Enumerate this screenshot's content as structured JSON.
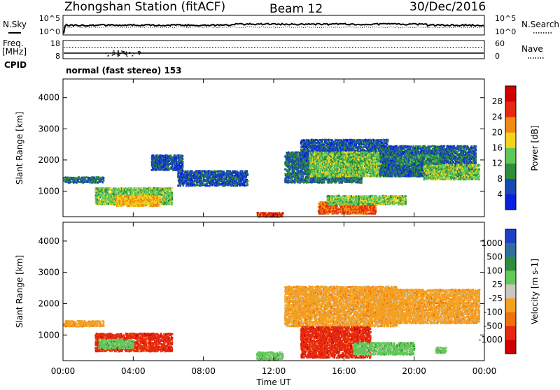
{
  "header": {
    "station": "Zhongshan Station (fitACF)",
    "beam": "Beam 12",
    "date": "30/Dec/2016"
  },
  "noise_panel": {
    "left_label": "N.Sky",
    "right_label": "N.Search",
    "left_ticks": [
      "10^5",
      "10^0"
    ],
    "right_ticks": [
      "10^5",
      "10^0"
    ]
  },
  "freq_panel": {
    "left_label_1": "Freq.",
    "left_label_2": "[MHz]",
    "right_label": "Nave",
    "left_ticks": [
      "18",
      "8"
    ],
    "right_ticks": [
      "60",
      "0"
    ]
  },
  "cpid": {
    "label": "CPID",
    "text": "normal (fast stereo) 153"
  },
  "chart_data": [
    {
      "type": "heatmap",
      "name": "power",
      "ylabel": "Slant Range [km]",
      "ylim": [
        180,
        4600
      ],
      "yticks": [
        1000,
        2000,
        3000,
        4000
      ],
      "colorbar": {
        "label": "Power [dB]",
        "ticks": [
          4,
          8,
          12,
          16,
          20,
          24,
          28
        ],
        "range": [
          0,
          32
        ],
        "colors": [
          "#0a1fe0",
          "#1848b0",
          "#2e8c3a",
          "#5fc85a",
          "#f4d21e",
          "#f08a10",
          "#e52810",
          "#d00000"
        ]
      },
      "regions": [
        {
          "t0": 0.0,
          "t1": 2.3,
          "r0": 1300,
          "r1": 1500,
          "level": 8
        },
        {
          "t0": 1.8,
          "t1": 6.2,
          "r0": 600,
          "r1": 1150,
          "level": 14
        },
        {
          "t0": 3.0,
          "t1": 5.5,
          "r0": 550,
          "r1": 900,
          "level": 20
        },
        {
          "t0": 5.0,
          "t1": 6.8,
          "r0": 1700,
          "r1": 2200,
          "level": 6
        },
        {
          "t0": 6.5,
          "t1": 10.5,
          "r0": 1200,
          "r1": 1700,
          "level": 6
        },
        {
          "t0": 11.0,
          "t1": 12.5,
          "r0": 200,
          "r1": 350,
          "level": 26
        },
        {
          "t0": 12.6,
          "t1": 17.0,
          "r0": 1300,
          "r1": 2300,
          "level": 8
        },
        {
          "t0": 13.5,
          "t1": 18.5,
          "r0": 2000,
          "r1": 2700,
          "level": 6
        },
        {
          "t0": 14.0,
          "t1": 20.5,
          "r0": 1500,
          "r1": 2300,
          "level": 14
        },
        {
          "t0": 14.5,
          "t1": 17.8,
          "r0": 300,
          "r1": 700,
          "level": 24
        },
        {
          "t0": 15.0,
          "t1": 19.5,
          "r0": 600,
          "r1": 900,
          "level": 14
        },
        {
          "t0": 18.0,
          "t1": 23.5,
          "r0": 1500,
          "r1": 2500,
          "level": 7
        },
        {
          "t0": 20.5,
          "t1": 23.7,
          "r0": 1400,
          "r1": 1900,
          "level": 14
        },
        {
          "t0": 19.0,
          "t1": 21.5,
          "r0": 1900,
          "r1": 2200,
          "level": 10
        }
      ]
    },
    {
      "type": "heatmap",
      "name": "velocity",
      "ylabel": "Slant Range [km]",
      "ylim": [
        180,
        4600
      ],
      "yticks": [
        1000,
        2000,
        3000,
        4000
      ],
      "colorbar": {
        "label": "Velocity [m s-1]",
        "ticks": [
          "1000",
          "500",
          "100",
          "25",
          "-25",
          "-100",
          "-500",
          "-1000"
        ],
        "colors": [
          "#1e3fc8",
          "#2f6e9e",
          "#2e8c3a",
          "#62c858",
          "#c8c8c0",
          "#f4a020",
          "#f07010",
          "#e52810",
          "#d00000"
        ]
      },
      "regions": [
        {
          "t0": 0.0,
          "t1": 2.3,
          "r0": 1300,
          "r1": 1500,
          "level": "-25"
        },
        {
          "t0": 1.8,
          "t1": 6.2,
          "r0": 500,
          "r1": 1100,
          "level": "-500"
        },
        {
          "t0": 2.0,
          "t1": 4.0,
          "r0": 600,
          "r1": 900,
          "level": "100"
        },
        {
          "t0": 11.0,
          "t1": 12.5,
          "r0": 250,
          "r1": 500,
          "level": "100"
        },
        {
          "t0": 12.6,
          "t1": 19.0,
          "r0": 1300,
          "r1": 2600,
          "level": "-25"
        },
        {
          "t0": 13.5,
          "t1": 17.5,
          "r0": 300,
          "r1": 1300,
          "level": "-500"
        },
        {
          "t0": 16.5,
          "t1": 20.0,
          "r0": 400,
          "r1": 800,
          "level": "100"
        },
        {
          "t0": 18.0,
          "t1": 23.7,
          "r0": 1400,
          "r1": 2500,
          "level": "-25"
        },
        {
          "t0": 21.2,
          "t1": 21.8,
          "r0": 450,
          "r1": 650,
          "level": "100"
        }
      ]
    }
  ],
  "time_axis": {
    "label": "Time UT",
    "ticks": [
      "00:00",
      "04:00",
      "08:00",
      "12:00",
      "16:00",
      "20:00",
      "00:00"
    ]
  }
}
